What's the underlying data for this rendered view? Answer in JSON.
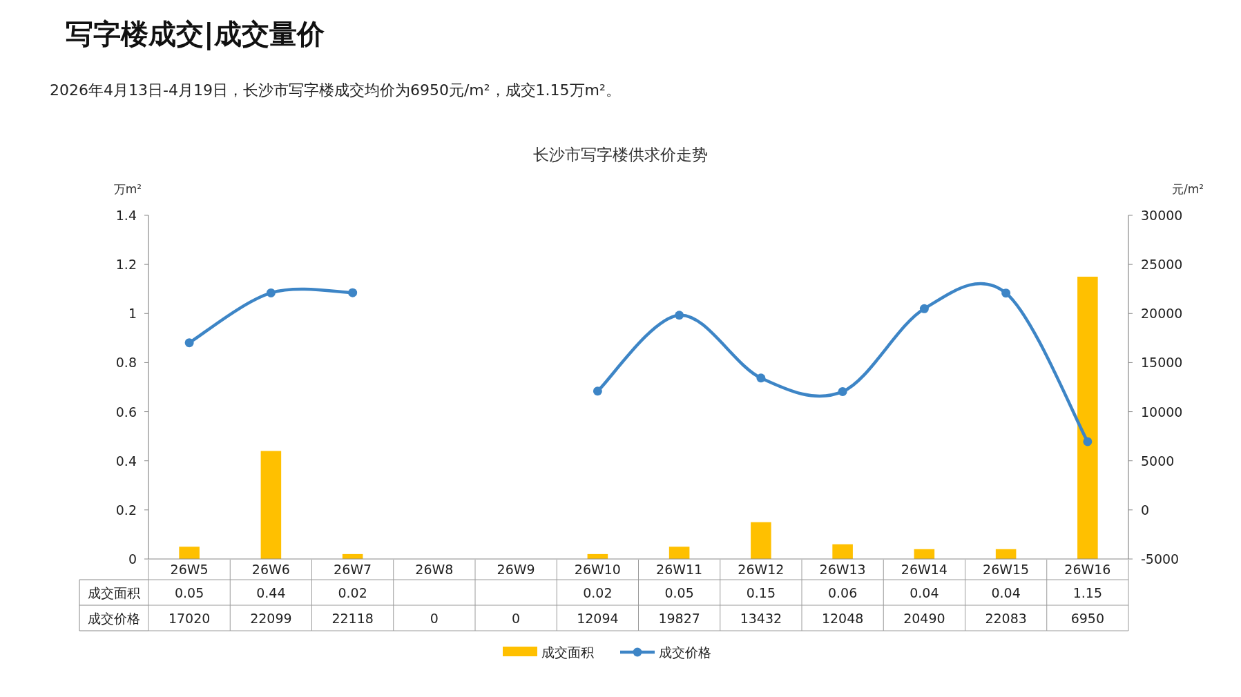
{
  "chart_data": {
    "type": "bar",
    "title": "长沙市写字楼供求价走势",
    "annotations": [
      "写字楼成交|成交量价",
      "2026年4月13日-4月19日，长沙市写字楼成交均价为6950元/m²，成交1.15万m²。"
    ],
    "ylabel": "万m²",
    "y2label": "元/m²",
    "categories": [
      "26W5",
      "26W6",
      "26W7",
      "26W8",
      "26W9",
      "26W10",
      "26W11",
      "26W12",
      "26W13",
      "26W14",
      "26W15",
      "26W16"
    ],
    "series": [
      {
        "name": "成交面积",
        "color": "#ffc000",
        "values": [
          0.05,
          0.44,
          0.02,
          null,
          null,
          0.02,
          0.05,
          0.15,
          0.06,
          0.04,
          0.04,
          1.15
        ],
        "value_labels": [
          "0.05",
          "0.44",
          "0.02",
          null,
          null,
          "0.02",
          "0.05",
          "0.15",
          "0.06",
          "0.04",
          "0.04",
          "1.15"
        ]
      },
      {
        "name": "成交价格",
        "type": "line",
        "axis": "y2",
        "color": "#3d85c6",
        "values": [
          17020,
          22099,
          22118,
          null,
          null,
          12094,
          19827,
          13432,
          12048,
          20490,
          22083,
          6950
        ],
        "value_labels": [
          "17020",
          "22099",
          "22118",
          "0",
          "0",
          "12094",
          "19827",
          "13432",
          "12048",
          "20490",
          "22083",
          "6950"
        ]
      }
    ],
    "ylim": [
      0,
      1.4
    ],
    "yticks": [
      0,
      0.2,
      0.4,
      0.6,
      0.8,
      1,
      1.2,
      1.4
    ],
    "y2lim": [
      -5000,
      30000
    ],
    "y2ticks": [
      -5000,
      0,
      5000,
      10000,
      15000,
      20000,
      25000,
      30000
    ],
    "marker": "circle",
    "grid": false,
    "legend": "bottom"
  }
}
